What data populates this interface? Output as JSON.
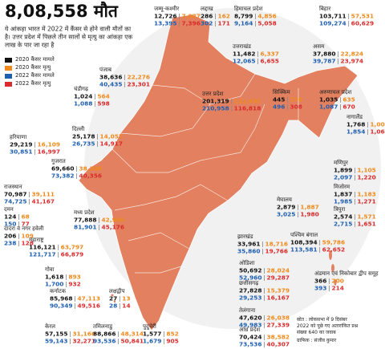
{
  "header": {
    "title": "8,08,558 मौत",
    "subtitle": [
      "ये आंकड़ा भारत में 2022 में कैंसर से होने वाली मौतों का",
      "है। उत्तर प्रदेश में पिछले तीन सालों से मृत्यु का आंकड़ा एक",
      "लाख के पार जा रहा है"
    ]
  },
  "legend": [
    "2020 कैंसर मामले",
    "2020 कैंसर मृत्यु",
    "2022 कैंसर मामले",
    "2022 कैंसर मृत्यु"
  ],
  "states": [
    {
      "name": "जम्मू-कश्मीर",
      "cases_2020": "12,726",
      "deaths_2020": "7,027",
      "cases_2022": "13,395",
      "deaths_2022": "7,396"
    },
    {
      "name": "लद्दाख",
      "cases_2020": "286",
      "deaths_2020": "162",
      "cases_2022": "302",
      "deaths_2022": "171"
    },
    {
      "name": "हिमाचल प्रदेश",
      "cases_2020": "8,799",
      "deaths_2020": "4,856",
      "cases_2022": "9,164",
      "deaths_2022": "5,058"
    },
    {
      "name": "बिहार",
      "cases_2020": "103,711",
      "deaths_2020": "57,531",
      "cases_2022": "109,274",
      "deaths_2022": "60,629"
    },
    {
      "name": "पंजाब",
      "cases_2020": "38,636",
      "deaths_2020": "22,276",
      "cases_2022": "40,435",
      "deaths_2022": "23,301"
    },
    {
      "name": "उत्तराखंड",
      "cases_2020": "11,482",
      "deaths_2020": "6,337",
      "cases_2022": "12,065",
      "deaths_2022": "6,655"
    },
    {
      "name": "असम",
      "cases_2020": "37,880",
      "deaths_2020": "22,824",
      "cases_2022": "39,787",
      "deaths_2022": "23,974"
    },
    {
      "name": "चंडीगढ़",
      "cases_2020": "1,024",
      "deaths_2020": "564",
      "cases_2022": "1,088",
      "deaths_2022": "598"
    },
    {
      "name": "उत्तर प्रदेश",
      "cases_2020": "201,319",
      "deaths_2020": "111,491",
      "cases_2022": "210,958",
      "deaths_2022": "116,818"
    },
    {
      "name": "सिक्किम",
      "cases_2020": "445",
      "deaths_2020": "276",
      "cases_2022": "496",
      "deaths_2022": "308"
    },
    {
      "name": "अरुणाचल प्रदेश",
      "cases_2020": "1,035",
      "deaths_2020": "635",
      "cases_2022": "1,087",
      "deaths_2022": "670"
    },
    {
      "name": "हरियाणा",
      "cases_2020": "29,219",
      "deaths_2020": "16,109",
      "cases_2022": "30,851",
      "deaths_2022": "16,997"
    },
    {
      "name": "दिल्ली",
      "cases_2020": "25,178",
      "deaths_2020": "14,057",
      "cases_2022": "26,735",
      "deaths_2022": "14,917"
    },
    {
      "name": "नागालैंड",
      "cases_2020": "1,768",
      "deaths_2020": "1,008",
      "cases_2022": "1,854",
      "deaths_2022": "1,060"
    },
    {
      "name": "राजस्थान",
      "cases_2020": "70,987",
      "deaths_2020": "39,111",
      "cases_2022": "74,725",
      "deaths_2022": "41,167"
    },
    {
      "name": "गुजरात",
      "cases_2020": "69,660",
      "deaths_2020": "38,306",
      "cases_2022": "73,382",
      "deaths_2022": "40,356"
    },
    {
      "name": "मणिपुर",
      "cases_2020": "1,899",
      "deaths_2020": "1,105",
      "cases_2022": "2,097",
      "deaths_2022": "1,220"
    },
    {
      "name": "मिजोरम",
      "cases_2020": "1,837",
      "deaths_2020": "1,183",
      "cases_2022": "1,985",
      "deaths_2022": "1,271"
    },
    {
      "name": "दमन",
      "cases_2020": "124",
      "deaths_2020": "68",
      "cases_2022": "150",
      "deaths_2022": "77"
    },
    {
      "name": "त्रिपुरा",
      "cases_2020": "2,574",
      "deaths_2020": "1,571",
      "cases_2022": "2,715",
      "deaths_2022": "1,651"
    },
    {
      "name": "दादरा व नगर हवेली",
      "cases_2020": "206",
      "deaths_2020": "109",
      "cases_2022": "238",
      "deaths_2022": "128"
    },
    {
      "name": "मध्य प्रदेश",
      "cases_2020": "77,888",
      "deaths_2020": "42,966",
      "cases_2022": "81,901",
      "deaths_2022": "45,176"
    },
    {
      "name": "मेघालय",
      "cases_2020": "2,879",
      "deaths_2020": "1,887",
      "cases_2022": "3,025",
      "deaths_2022": "1,980"
    },
    {
      "name": "महाराष्ट्र",
      "cases_2020": "116,121",
      "deaths_2020": "63,797",
      "cases_2022": "121,717",
      "deaths_2022": "66,879"
    },
    {
      "name": "झारखंड",
      "cases_2020": "33,961",
      "deaths_2020": "18,716",
      "cases_2022": "35,860",
      "deaths_2022": "19,766"
    },
    {
      "name": "पश्चिम बंगाल",
      "cases_2020": "108,394",
      "deaths_2020": "59,786",
      "cases_2022": "113,581",
      "deaths_2022": "62,652"
    },
    {
      "name": "गोवा",
      "cases_2020": "1,618",
      "deaths_2020": "893",
      "cases_2022": "1,700",
      "deaths_2022": "932"
    },
    {
      "name": "ओडिशा",
      "cases_2020": "50,692",
      "deaths_2020": "28,024",
      "cases_2022": "52,960",
      "deaths_2022": "29,287"
    },
    {
      "name": "कर्नाटक",
      "cases_2020": "85,968",
      "deaths_2020": "47,113",
      "cases_2022": "90,349",
      "deaths_2022": "49,516"
    },
    {
      "name": "लक्षद्वीप",
      "cases_2020": "27",
      "deaths_2020": "13",
      "cases_2022": "28",
      "deaths_2022": "14"
    },
    {
      "name": "छत्तीसगढ़",
      "cases_2020": "27,828",
      "deaths_2020": "15,379",
      "cases_2022": "29,253",
      "deaths_2022": "16,167"
    },
    {
      "name": "अंडमान एवं निकोबार द्वीप समूह",
      "cases_2020": "366",
      "deaths_2020": "200",
      "cases_2022": "393",
      "deaths_2022": "214"
    },
    {
      "name": "तेलंगाना",
      "cases_2020": "47,620",
      "deaths_2020": "26,038",
      "cases_2022": "49,983",
      "deaths_2022": "27,339"
    },
    {
      "name": "केरल",
      "cases_2020": "57,155",
      "deaths_2020": "31,166",
      "cases_2022": "59,143",
      "deaths_2022": "32,271"
    },
    {
      "name": "तमिलनाडु",
      "cases_2020": "88,866",
      "deaths_2020": "48,314",
      "cases_2022": "93,536",
      "deaths_2022": "50,841"
    },
    {
      "name": "पुदुचेरी",
      "cases_2020": "1,577",
      "deaths_2020": "852",
      "cases_2022": "1,679",
      "deaths_2022": "905"
    },
    {
      "name": "आंध्र प्रदेश",
      "cases_2020": "70,424",
      "deaths_2020": "38,582",
      "cases_2022": "73,536",
      "deaths_2022": "40,307"
    }
  ],
  "note": [
    "स्रोत : लोकसभा में 9 दिसंबर",
    "2022 को पूछे गए अतारांकित प्रश्न",
    "संख्या 640 का जवाब",
    "ग्राफिक : संजीव कुमार"
  ]
}
